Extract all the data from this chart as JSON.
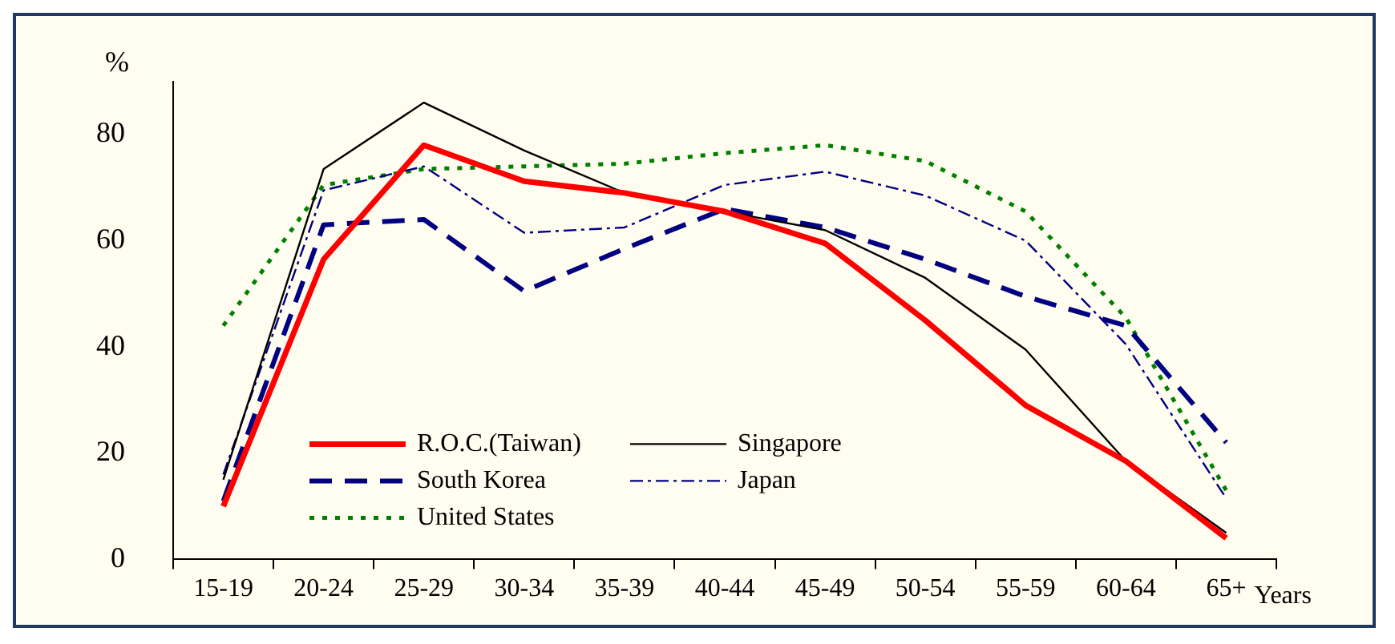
{
  "chart_data": {
    "type": "line",
    "ylabel": "%",
    "xlabel": "Years",
    "categories": [
      "15-19",
      "20-24",
      "25-29",
      "30-34",
      "35-39",
      "40-44",
      "45-49",
      "50-54",
      "55-59",
      "60-64",
      "65+"
    ],
    "ylim": [
      0,
      90
    ],
    "yticks": [
      0,
      20,
      40,
      60,
      80
    ],
    "grid": false,
    "legend": "bottom left",
    "marker": "none",
    "series": [
      {
        "name": "R.O.C.(Taiwan)",
        "color": "#ff0000",
        "line_style": "solid",
        "values": [
          10,
          56.5,
          78,
          71.2,
          69,
          65.5,
          59.5,
          45,
          29,
          18.5,
          4
        ]
      },
      {
        "name": "Singapore",
        "color": "#000000",
        "line_style": "solid",
        "values": [
          15,
          73.5,
          86,
          77,
          69,
          65.5,
          62,
          53,
          39.5,
          18.5,
          5
        ]
      },
      {
        "name": "South Korea",
        "color": "#000080",
        "line_style": "dashed",
        "values": [
          11,
          63,
          64,
          50.5,
          58.5,
          66,
          62.5,
          56.5,
          49.5,
          44,
          22
        ]
      },
      {
        "name": "Japan",
        "color": "#000080",
        "line_style": "dashdot",
        "values": [
          16,
          69.5,
          74,
          61.5,
          62.5,
          70.5,
          73,
          68.5,
          60,
          40.5,
          11.5
        ]
      },
      {
        "name": "United States",
        "color": "#008000",
        "line_style": "dotted",
        "values": [
          44,
          70.5,
          73.5,
          74,
          74.5,
          76.5,
          78,
          75,
          65.5,
          45.5,
          13
        ]
      }
    ]
  }
}
